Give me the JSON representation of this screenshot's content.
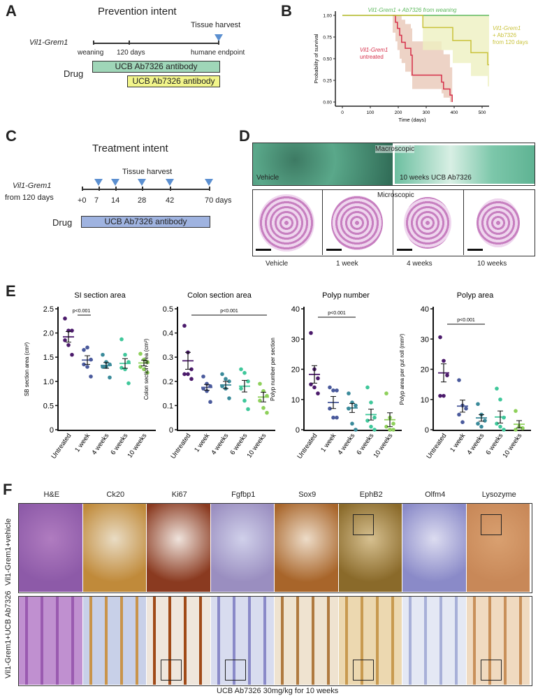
{
  "panelA": {
    "letter": "A",
    "title": "Prevention intent",
    "harvest": "Tissue harvest",
    "strain": "Vil1-Grem1",
    "ticks": [
      "weaning",
      "120 days",
      "humane endpoint"
    ],
    "drug": "Drug",
    "bar1": "UCB Ab7326 antibody",
    "bar2": "UCB Ab7326 antibody",
    "bar1_color": "#9fd6b8",
    "bar2_color": "#f2f58a"
  },
  "panelB": {
    "letter": "B",
    "chart_data": {
      "type": "line",
      "xlabel": "Time (days)",
      "ylabel": "Probability of survival",
      "xlim": [
        0,
        525
      ],
      "ylim": [
        0,
        1
      ],
      "xticks": [
        0,
        100,
        200,
        300,
        400,
        500
      ],
      "yticks": [
        "0.00",
        "0.25",
        "0.50",
        "0.75",
        "1.00"
      ],
      "series": [
        {
          "name": "Vil1-Grem1 + Ab7326 from weaning",
          "color": "#5cb85c",
          "x": [
            0,
            525
          ],
          "y": [
            1,
            1
          ]
        },
        {
          "name": "Vil1-Grem1 untreated",
          "name_lines": [
            "Vil1-Grem1",
            "untreated"
          ],
          "color": "#d6304a",
          "band": "#e8c8b8",
          "x": [
            180,
            190,
            197,
            205,
            212,
            225,
            245,
            250,
            350,
            355,
            362,
            385,
            393
          ],
          "y": [
            1,
            0.92,
            0.85,
            0.77,
            0.69,
            0.62,
            0.54,
            0.31,
            0.31,
            0.23,
            0.15,
            0.08,
            0
          ],
          "lo": [
            0.8,
            0.7,
            0.6,
            0.5,
            0.45,
            0.35,
            0.3,
            0.15,
            0.15,
            0.1,
            0.05,
            0,
            0
          ],
          "hi": [
            1,
            1,
            1,
            1,
            0.95,
            0.9,
            0.85,
            0.7,
            0.7,
            0.6,
            0.55,
            0.4,
            0.3
          ]
        },
        {
          "name": "Vil1-Grem1 + Ab7326 from 120 days",
          "name_lines": [
            "Vil1-Grem1",
            "+ Ab7326",
            "from 120 days"
          ],
          "color": "#c9c23a",
          "band": "#eef0c0",
          "x": [
            0,
            288,
            395,
            460,
            520,
            525
          ],
          "y": [
            1,
            0.86,
            0.71,
            0.57,
            0.43,
            0.43
          ],
          "lo": [
            1,
            0.6,
            0.45,
            0.3,
            0.18,
            0.18
          ],
          "hi": [
            1,
            1,
            1,
            1,
            1,
            1
          ]
        }
      ]
    }
  },
  "panelC": {
    "letter": "C",
    "title": "Treatment intent",
    "harvest": "Tissue harvest",
    "strain": "Vil1-Grem1",
    "strain2": "from 120 days",
    "ticks": [
      "+0",
      "7",
      "14",
      "28",
      "42",
      "70 days"
    ],
    "harvest_days": [
      7,
      14,
      28,
      42,
      70
    ],
    "drug": "Drug",
    "bar": "UCB Ab7326 antibody",
    "bar_color": "#9fb3e0"
  },
  "panelD": {
    "letter": "D",
    "macro": "Macroscopic",
    "micro": "Microscopic",
    "macro_labels": [
      "Vehicle",
      "10 weeks UCB Ab7326"
    ],
    "micro_labels": [
      "Vehicle",
      "1 week",
      "4 weeks",
      "10 weeks"
    ]
  },
  "panelE": {
    "letter": "E",
    "categories": [
      "Untreated",
      "1 week",
      "4 weeks",
      "6 weeks",
      "10 weeks"
    ],
    "colors": [
      "#4b1a6b",
      "#4a5a9c",
      "#3a8a9a",
      "#3fc79a",
      "#8ed05a"
    ],
    "chart_data": [
      {
        "type": "scatter",
        "title": "SI section area",
        "ylabel": "SB section area (cm²)",
        "ylim": [
          0,
          2.5
        ],
        "yticks": [
          "0",
          "0.5",
          "1.0",
          "1.5",
          "2.0",
          "2.5"
        ],
        "pvalue": "p<0.001",
        "p_span": [
          0,
          1
        ],
        "points": [
          [
            2.3,
            2.05,
            2.05,
            1.85,
            1.75,
            1.55
          ],
          [
            1.65,
            1.7,
            1.45,
            1.35,
            1.3,
            1.1
          ],
          [
            1.55,
            1.4,
            1.35,
            1.3,
            1.3,
            1.08
          ],
          [
            1.87,
            1.55,
            1.4,
            1.28,
            1.25,
            0.96
          ],
          [
            1.57,
            1.45,
            1.4,
            1.3,
            1.25,
            1.18
          ]
        ],
        "mean": [
          1.92,
          1.44,
          1.33,
          1.37,
          1.38
        ],
        "sem": [
          0.11,
          0.09,
          0.06,
          0.1,
          0.06
        ]
      },
      {
        "type": "scatter",
        "title": "Colon section area",
        "ylabel": "Colon section area (cm²)",
        "ylim": [
          0,
          0.5
        ],
        "yticks": [
          "0",
          "0.1",
          "0.2",
          "0.3",
          "0.4",
          "0.5"
        ],
        "pvalue": "p<0.001",
        "p_span": [
          0,
          4
        ],
        "points": [
          [
            0.43,
            0.32,
            0.25,
            0.23,
            0.23,
            0.21
          ],
          [
            0.22,
            0.19,
            0.18,
            0.17,
            0.16,
            0.115
          ],
          [
            0.23,
            0.21,
            0.2,
            0.18,
            0.17,
            0.13
          ],
          [
            0.25,
            0.235,
            0.2,
            0.17,
            0.12,
            0.085
          ],
          [
            0.19,
            0.16,
            0.14,
            0.12,
            0.09,
            0.07
          ]
        ],
        "mean": [
          0.285,
          0.175,
          0.185,
          0.18,
          0.135
        ],
        "sem": [
          0.035,
          0.012,
          0.015,
          0.024,
          0.02
        ]
      },
      {
        "type": "scatter",
        "title": "Polyp number",
        "ylabel": "Polyp number per section",
        "ylim": [
          0,
          40
        ],
        "yticks": [
          "0",
          "10",
          "20",
          "30",
          "40"
        ],
        "pvalue": "p<0.001",
        "p_span": [
          0,
          2
        ],
        "points": [
          [
            32,
            20,
            17,
            15,
            14,
            12
          ],
          [
            14,
            13,
            13,
            7,
            4,
            4
          ],
          [
            12,
            9,
            8,
            7,
            2,
            0
          ],
          [
            14,
            9,
            4,
            3,
            1,
            0
          ],
          [
            12,
            4,
            2,
            1,
            0,
            0
          ]
        ],
        "mean": [
          18.3,
          9,
          7.2,
          5,
          3.3
        ],
        "sem": [
          2.9,
          2,
          1.5,
          1.8,
          2.3
        ]
      },
      {
        "type": "scatter",
        "title": "Polyp area",
        "ylabel": "Polyp area per gut roll (mm²)",
        "ylim": [
          0,
          40
        ],
        "yticks": [
          "0",
          "10",
          "20",
          "30",
          "40"
        ],
        "pvalue": "p<0.001",
        "p_span": [
          0,
          2
        ],
        "points": [
          [
            30.6,
            22.8,
            18,
            11.2,
            11.2
          ],
          [
            16.4,
            8,
            7,
            5,
            2.5
          ],
          [
            8.5,
            5,
            3,
            2,
            1
          ],
          [
            13.6,
            10,
            4,
            2,
            1,
            0
          ],
          [
            6.2,
            1,
            0.5,
            0
          ]
        ],
        "mean": [
          18.8,
          7.8,
          3.9,
          4.2,
          1.8
        ],
        "sem": [
          3,
          2,
          1.1,
          2,
          1.2
        ]
      }
    ]
  },
  "panelF": {
    "letter": "F",
    "stains": [
      "H&E",
      "Ck20",
      "Ki67",
      "Fgfbp1",
      "Sox9",
      "EphB2",
      "Olfm4",
      "Lysozyme"
    ],
    "rows": [
      "Vil1-Grem1+vehicle",
      "Vil1-Grem1+UCB Ab7326"
    ],
    "caption": "UCB Ab7326 30mg/kg for 10 weeks"
  }
}
